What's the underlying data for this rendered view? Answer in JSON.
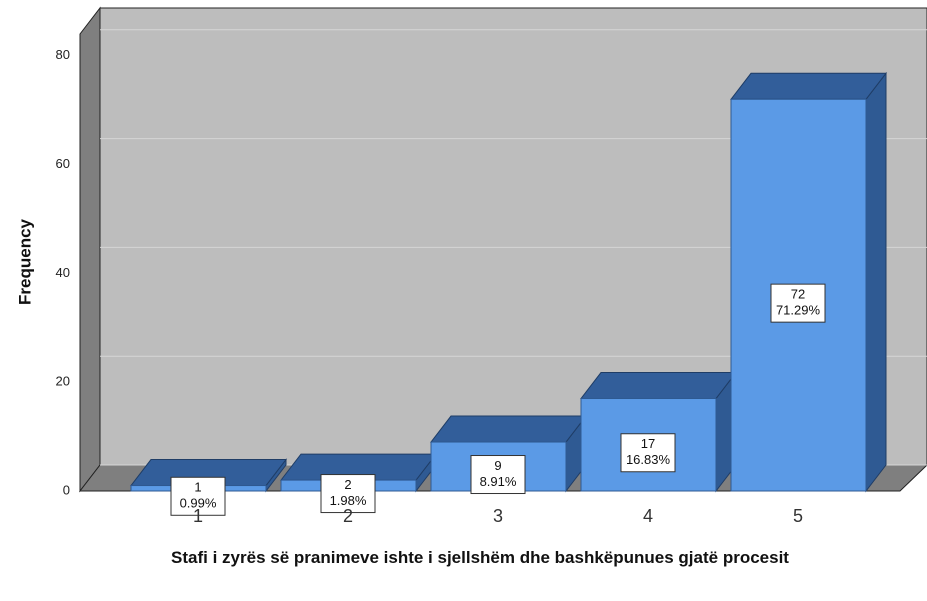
{
  "chart_data": {
    "type": "bar3d",
    "categories": [
      "1",
      "2",
      "3",
      "4",
      "5"
    ],
    "values": [
      1,
      2,
      9,
      17,
      72
    ],
    "percentages": [
      0.99,
      1.98,
      8.91,
      16.83,
      71.29
    ],
    "percentage_labels": [
      "0.99%",
      "1.98%",
      "8.91%",
      "16.83%",
      "71.29%"
    ],
    "color": "#5b9ae6",
    "ylim": [
      0,
      84
    ],
    "yticks": [
      0,
      20,
      40,
      60,
      80
    ],
    "grid": true,
    "y_label": "Frequency",
    "x_label": "Stafi i zyrës së pranimeve ishte i sjellshëm dhe bashkëpunues gjatë procesit"
  }
}
